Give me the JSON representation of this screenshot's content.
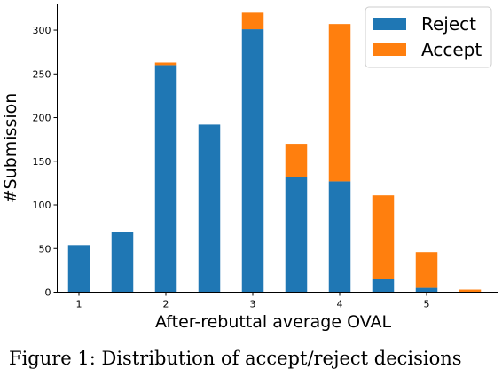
{
  "chart_data": {
    "type": "bar",
    "stacked": true,
    "xlabel": "After-rebuttal average OVAL",
    "ylabel": "#Submission",
    "x": [
      1,
      1.5,
      2,
      2.5,
      3,
      3.5,
      4,
      4.5,
      5,
      5.5
    ],
    "x_ticks": [
      "1",
      "2",
      "3",
      "4",
      "5"
    ],
    "y_ticks": [
      "0",
      "50",
      "100",
      "150",
      "200",
      "250",
      "300"
    ],
    "ylim": [
      0,
      330
    ],
    "legend_position": "top-right",
    "series": [
      {
        "name": "Reject",
        "color": "#1f77b4",
        "values": [
          54,
          69,
          260,
          192,
          301,
          132,
          127,
          15,
          5,
          0
        ]
      },
      {
        "name": "Accept",
        "color": "#ff7f0e",
        "values": [
          0,
          0,
          3,
          0,
          19,
          38,
          180,
          96,
          41,
          3
        ]
      }
    ],
    "grid": false
  },
  "caption": "Figure 1: Distribution of accept/reject decisions"
}
